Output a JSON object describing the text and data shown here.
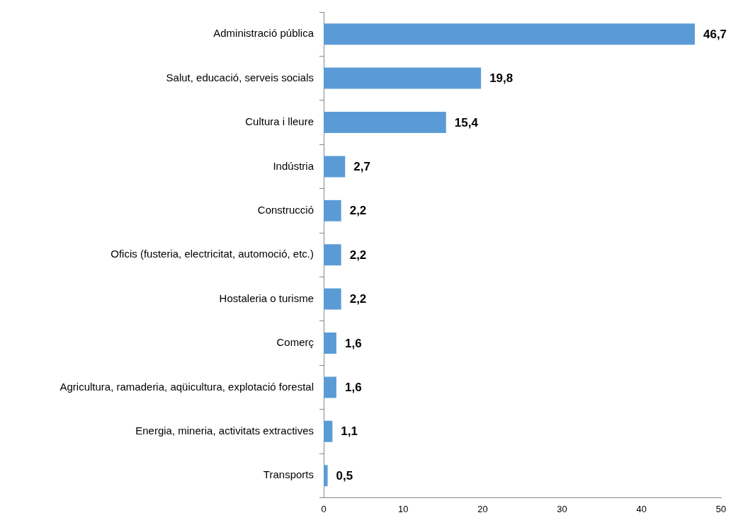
{
  "chart_data": {
    "type": "bar",
    "orientation": "horizontal",
    "categories": [
      "Administració pública",
      "Salut, educació, serveis socials",
      "Cultura i lleure",
      "Indústria",
      "Construcció",
      "Oficis (fusteria, electricitat, automoció, etc.)",
      "Hostaleria o turisme",
      "Comerç",
      "Agricultura, ramaderia, aqüicultura, explotació forestal",
      "Energia, mineria, activitats extractives",
      "Transports"
    ],
    "values": [
      46.7,
      19.8,
      15.4,
      2.7,
      2.2,
      2.2,
      2.2,
      1.6,
      1.6,
      1.1,
      0.5
    ],
    "value_labels": [
      "46,7",
      "19,8",
      "15,4",
      "2,7",
      "2,2",
      "2,2",
      "2,2",
      "1,6",
      "1,6",
      "1,1",
      "0,5"
    ],
    "color": "#5b9bd5",
    "xlim": [
      0,
      50
    ],
    "xticks": [
      0,
      10,
      20,
      30,
      40,
      50
    ],
    "grid": false,
    "legend": false
  }
}
